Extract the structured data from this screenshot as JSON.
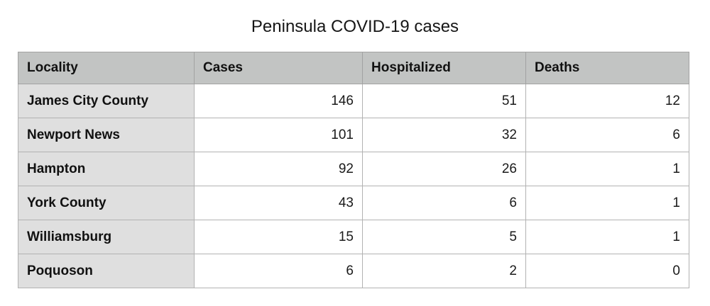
{
  "title": "Peninsula COVID-19 cases",
  "table": {
    "headers": {
      "locality": "Locality",
      "cases": "Cases",
      "hospitalized": "Hospitalized",
      "deaths": "Deaths"
    },
    "rows": [
      {
        "locality": "James City County",
        "cases": "146",
        "hospitalized": "51",
        "deaths": "12"
      },
      {
        "locality": "Newport News",
        "cases": "101",
        "hospitalized": "32",
        "deaths": "6"
      },
      {
        "locality": "Hampton",
        "cases": "92",
        "hospitalized": "26",
        "deaths": "1"
      },
      {
        "locality": "York County",
        "cases": "43",
        "hospitalized": "6",
        "deaths": "1"
      },
      {
        "locality": "Williamsburg",
        "cases": "15",
        "hospitalized": "5",
        "deaths": "1"
      },
      {
        "locality": "Poquoson",
        "cases": "6",
        "hospitalized": "2",
        "deaths": "0"
      }
    ]
  },
  "colors": {
    "header_bg": "#c2c4c3",
    "row_label_bg": "#dfdfdf",
    "cell_bg": "#ffffff",
    "border": "#b2b2b2",
    "outer_border": "#9c9c9c",
    "text": "#141414"
  },
  "chart_data": {
    "type": "table",
    "title": "Peninsula COVID-19 cases",
    "columns": [
      "Locality",
      "Cases",
      "Hospitalized",
      "Deaths"
    ],
    "rows": [
      [
        "James City County",
        146,
        51,
        12
      ],
      [
        "Newport News",
        101,
        32,
        6
      ],
      [
        "Hampton",
        92,
        26,
        1
      ],
      [
        "York County",
        43,
        6,
        1
      ],
      [
        "Williamsburg",
        15,
        5,
        1
      ],
      [
        "Poquoson",
        6,
        2,
        0
      ]
    ]
  }
}
